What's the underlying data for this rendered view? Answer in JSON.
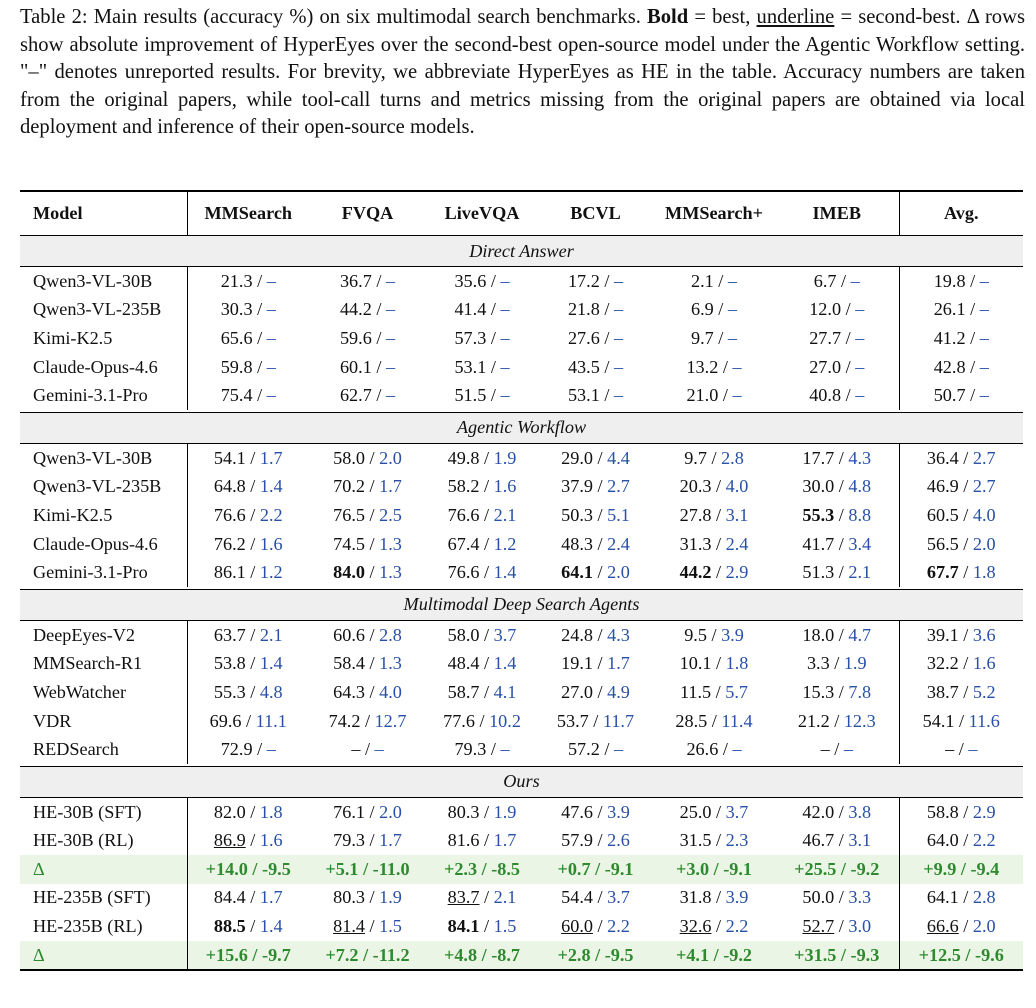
{
  "caption": {
    "prefix": "Table 2: Main results (accuracy %) on six multimodal search benchmarks. ",
    "bold_word": "Bold",
    "mid1": " = best, ",
    "underline_word": "underline",
    "rest": " = second-best. Δ rows show absolute improvement of HyperEyes over the second-best open-source model under the Agentic Workflow setting. \"–\" denotes unreported results. For brevity, we abbreviate HyperEyes as HE in the table. Accuracy numbers are taken from the original papers, while tool-call turns and metrics missing from the original papers are obtained via local deployment and inference of their open-source models."
  },
  "headers": [
    "Model",
    "MMSearch",
    "FVQA",
    "LiveVQA",
    "BCVL",
    "MMSearch+",
    "IMEB",
    "Avg."
  ],
  "sections": [
    {
      "title": "Direct Answer",
      "rows": [
        {
          "model": "Qwen3-VL-30B",
          "cells": [
            [
              "21.3",
              "–"
            ],
            [
              "36.7",
              "–"
            ],
            [
              "35.6",
              "–"
            ],
            [
              "17.2",
              "–"
            ],
            [
              "2.1",
              "–"
            ],
            [
              "6.7",
              "–"
            ],
            [
              "19.8",
              "–"
            ]
          ]
        },
        {
          "model": "Qwen3-VL-235B",
          "cells": [
            [
              "30.3",
              "–"
            ],
            [
              "44.2",
              "–"
            ],
            [
              "41.4",
              "–"
            ],
            [
              "21.8",
              "–"
            ],
            [
              "6.9",
              "–"
            ],
            [
              "12.0",
              "–"
            ],
            [
              "26.1",
              "–"
            ]
          ]
        },
        {
          "model": "Kimi-K2.5",
          "cells": [
            [
              "65.6",
              "–"
            ],
            [
              "59.6",
              "–"
            ],
            [
              "57.3",
              "–"
            ],
            [
              "27.6",
              "–"
            ],
            [
              "9.7",
              "–"
            ],
            [
              "27.7",
              "–"
            ],
            [
              "41.2",
              "–"
            ]
          ]
        },
        {
          "model": "Claude-Opus-4.6",
          "cells": [
            [
              "59.8",
              "–"
            ],
            [
              "60.1",
              "–"
            ],
            [
              "53.1",
              "–"
            ],
            [
              "43.5",
              "–"
            ],
            [
              "13.2",
              "–"
            ],
            [
              "27.0",
              "–"
            ],
            [
              "42.8",
              "–"
            ]
          ]
        },
        {
          "model": "Gemini-3.1-Pro",
          "cells": [
            [
              "75.4",
              "–"
            ],
            [
              "62.7",
              "–"
            ],
            [
              "51.5",
              "–"
            ],
            [
              "53.1",
              "–"
            ],
            [
              "21.0",
              "–"
            ],
            [
              "40.8",
              "–"
            ],
            [
              "50.7",
              "–"
            ]
          ]
        }
      ]
    },
    {
      "title": "Agentic Workflow",
      "rows": [
        {
          "model": "Qwen3-VL-30B",
          "cells": [
            [
              "54.1",
              "1.7"
            ],
            [
              "58.0",
              "2.0"
            ],
            [
              "49.8",
              "1.9"
            ],
            [
              "29.0",
              "4.4"
            ],
            [
              "9.7",
              "2.8"
            ],
            [
              "17.7",
              "4.3"
            ],
            [
              "36.4",
              "2.7"
            ]
          ]
        },
        {
          "model": "Qwen3-VL-235B",
          "cells": [
            [
              "64.8",
              "1.4"
            ],
            [
              "70.2",
              "1.7"
            ],
            [
              "58.2",
              "1.6"
            ],
            [
              "37.9",
              "2.7"
            ],
            [
              "20.3",
              "4.0"
            ],
            [
              "30.0",
              "4.8"
            ],
            [
              "46.9",
              "2.7"
            ]
          ]
        },
        {
          "model": "Kimi-K2.5",
          "cells": [
            [
              "76.6",
              "2.2"
            ],
            [
              "76.5",
              "2.5"
            ],
            [
              "76.6",
              "2.1"
            ],
            [
              "50.3",
              "5.1"
            ],
            [
              "27.8",
              "3.1"
            ],
            [
              "55.3",
              "8.8",
              "b"
            ],
            [
              "60.5",
              "4.0"
            ]
          ]
        },
        {
          "model": "Claude-Opus-4.6",
          "cells": [
            [
              "76.2",
              "1.6"
            ],
            [
              "74.5",
              "1.3"
            ],
            [
              "67.4",
              "1.2"
            ],
            [
              "48.3",
              "2.4"
            ],
            [
              "31.3",
              "2.4"
            ],
            [
              "41.7",
              "3.4"
            ],
            [
              "56.5",
              "2.0"
            ]
          ]
        },
        {
          "model": "Gemini-3.1-Pro",
          "cells": [
            [
              "86.1",
              "1.2"
            ],
            [
              "84.0",
              "1.3",
              "b"
            ],
            [
              "76.6",
              "1.4"
            ],
            [
              "64.1",
              "2.0",
              "b"
            ],
            [
              "44.2",
              "2.9",
              "b"
            ],
            [
              "51.3",
              "2.1"
            ],
            [
              "67.7",
              "1.8",
              "b"
            ]
          ]
        }
      ]
    },
    {
      "title": "Multimodal Deep Search Agents",
      "rows": [
        {
          "model": "DeepEyes-V2",
          "cells": [
            [
              "63.7",
              "2.1"
            ],
            [
              "60.6",
              "2.8"
            ],
            [
              "58.0",
              "3.7"
            ],
            [
              "24.8",
              "4.3"
            ],
            [
              "9.5",
              "3.9"
            ],
            [
              "18.0",
              "4.7"
            ],
            [
              "39.1",
              "3.6"
            ]
          ]
        },
        {
          "model": "MMSearch-R1",
          "cells": [
            [
              "53.8",
              "1.4"
            ],
            [
              "58.4",
              "1.3"
            ],
            [
              "48.4",
              "1.4"
            ],
            [
              "19.1",
              "1.7"
            ],
            [
              "10.1",
              "1.8"
            ],
            [
              "3.3",
              "1.9"
            ],
            [
              "32.2",
              "1.6"
            ]
          ]
        },
        {
          "model": "WebWatcher",
          "cells": [
            [
              "55.3",
              "4.8"
            ],
            [
              "64.3",
              "4.0"
            ],
            [
              "58.7",
              "4.1"
            ],
            [
              "27.0",
              "4.9"
            ],
            [
              "11.5",
              "5.7"
            ],
            [
              "15.3",
              "7.8"
            ],
            [
              "38.7",
              "5.2"
            ]
          ]
        },
        {
          "model": "VDR",
          "cells": [
            [
              "69.6",
              "11.1"
            ],
            [
              "74.2",
              "12.7"
            ],
            [
              "77.6",
              "10.2"
            ],
            [
              "53.7",
              "11.7"
            ],
            [
              "28.5",
              "11.4"
            ],
            [
              "21.2",
              "12.3"
            ],
            [
              "54.1",
              "11.6"
            ]
          ]
        },
        {
          "model": "REDSearch",
          "cells": [
            [
              "72.9",
              "–"
            ],
            [
              "–",
              "–"
            ],
            [
              "79.3",
              "–"
            ],
            [
              "57.2",
              "–"
            ],
            [
              "26.6",
              "–"
            ],
            [
              "–",
              "–"
            ],
            [
              "–",
              "–"
            ]
          ]
        }
      ]
    },
    {
      "title": "Ours",
      "rows": [
        {
          "model": "HE-30B (SFT)",
          "cells": [
            [
              "82.0",
              "1.8"
            ],
            [
              "76.1",
              "2.0"
            ],
            [
              "80.3",
              "1.9"
            ],
            [
              "47.6",
              "3.9"
            ],
            [
              "25.0",
              "3.7"
            ],
            [
              "42.0",
              "3.8"
            ],
            [
              "58.8",
              "2.9"
            ]
          ]
        },
        {
          "model": "HE-30B (RL)",
          "cells": [
            [
              "86.9",
              "1.6",
              "u"
            ],
            [
              "79.3",
              "1.7"
            ],
            [
              "81.6",
              "1.7"
            ],
            [
              "57.9",
              "2.6"
            ],
            [
              "31.5",
              "2.3"
            ],
            [
              "46.7",
              "3.1"
            ],
            [
              "64.0",
              "2.2"
            ]
          ]
        },
        {
          "model": "Δ",
          "delta": true,
          "cells": [
            "+14.0 / -9.5",
            "+5.1 / -11.0",
            "+2.3 / -8.5",
            "+0.7 / -9.1",
            "+3.0 / -9.1",
            "+25.5 / -9.2",
            "+9.9 / -9.4"
          ]
        },
        {
          "model": "HE-235B (SFT)",
          "cells": [
            [
              "84.4",
              "1.7"
            ],
            [
              "80.3",
              "1.9"
            ],
            [
              "83.7",
              "2.1",
              "u"
            ],
            [
              "54.4",
              "3.7"
            ],
            [
              "31.8",
              "3.9"
            ],
            [
              "50.0",
              "3.3"
            ],
            [
              "64.1",
              "2.8"
            ]
          ]
        },
        {
          "model": "HE-235B (RL)",
          "cells": [
            [
              "88.5",
              "1.4",
              "b"
            ],
            [
              "81.4",
              "1.5",
              "u"
            ],
            [
              "84.1",
              "1.5",
              "b"
            ],
            [
              "60.0",
              "2.2",
              "u"
            ],
            [
              "32.6",
              "2.2",
              "u"
            ],
            [
              "52.7",
              "3.0",
              "u"
            ],
            [
              "66.6",
              "2.0",
              "u"
            ]
          ]
        },
        {
          "model": "Δ",
          "delta": true,
          "cells": [
            "+15.6 / -9.7",
            "+7.2 / -11.2",
            "+4.8 / -8.7",
            "+2.8 / -9.5",
            "+4.1 / -9.2",
            "+31.5 / -9.3",
            "+12.5 / -9.6"
          ]
        }
      ]
    }
  ]
}
